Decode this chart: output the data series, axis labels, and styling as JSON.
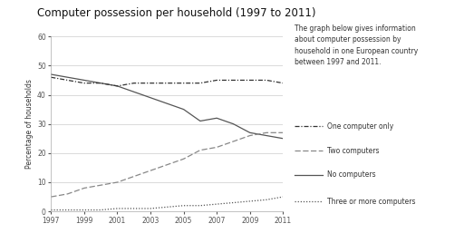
{
  "title": "Computer possession per household (1997 to 2011)",
  "ylabel": "Percentage of households",
  "description": "The graph below gives information\nabout computer possession by\nhousehold in one European country\nbetween 1997 and 2011.",
  "years": [
    1997,
    1998,
    1999,
    2000,
    2001,
    2002,
    2003,
    2004,
    2005,
    2006,
    2007,
    2008,
    2009,
    2010,
    2011
  ],
  "no_computers": [
    47,
    46,
    45,
    44,
    43,
    41,
    39,
    37,
    35,
    31,
    32,
    30,
    27,
    26,
    25
  ],
  "one_computer": [
    46,
    45,
    44,
    44,
    43,
    44,
    44,
    44,
    44,
    44,
    45,
    45,
    45,
    45,
    44
  ],
  "two_computers": [
    5,
    6,
    8,
    9,
    10,
    12,
    14,
    16,
    18,
    21,
    22,
    24,
    26,
    27,
    27
  ],
  "three_or_more": [
    0.5,
    0.5,
    0.5,
    0.5,
    1,
    1,
    1,
    1.5,
    2,
    2,
    2.5,
    3,
    3.5,
    4,
    5
  ],
  "ylim": [
    0,
    60
  ],
  "yticks": [
    0,
    10,
    20,
    30,
    40,
    50,
    60
  ],
  "xticks": [
    1997,
    1999,
    2001,
    2003,
    2005,
    2007,
    2009,
    2011
  ],
  "background_color": "#ffffff",
  "title_fontsize": 8.5,
  "axis_fontsize": 5.5,
  "legend_fontsize": 5.5,
  "desc_fontsize": 5.5
}
